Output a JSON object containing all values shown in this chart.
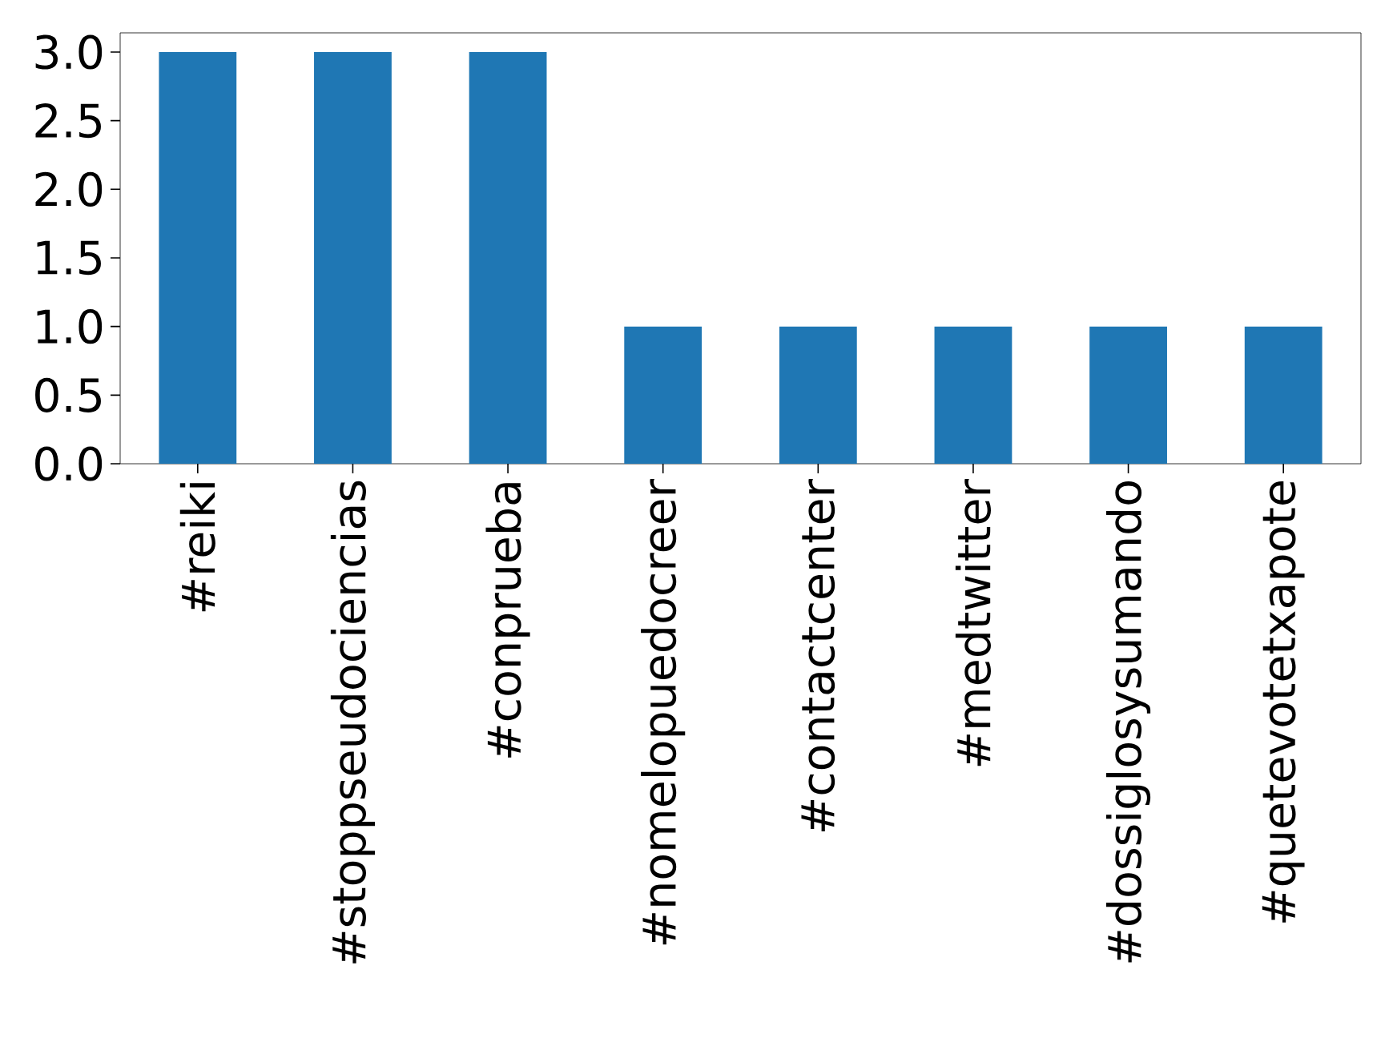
{
  "chart_data": {
    "type": "bar",
    "categories": [
      "#reiki",
      "#stoppseudociencias",
      "#conprueba",
      "#nomelopuedocreer",
      "#contactcenter",
      "#medtwitter",
      "#dossiglosysumando",
      "#quetevotetxapote"
    ],
    "values": [
      3,
      3,
      3,
      1,
      1,
      1,
      1,
      1
    ],
    "color": "#1f77b4",
    "ylim": [
      0,
      3.14
    ],
    "yticks": [
      {
        "value": 0,
        "label": "0.0"
      },
      {
        "value": 0.5,
        "label": "0.5"
      },
      {
        "value": 1,
        "label": "1.0"
      },
      {
        "value": 1.5,
        "label": "1.5"
      },
      {
        "value": 2,
        "label": "2.0"
      },
      {
        "value": 2.5,
        "label": "2.5"
      },
      {
        "value": 3,
        "label": "3.0"
      }
    ],
    "grid": false
  }
}
